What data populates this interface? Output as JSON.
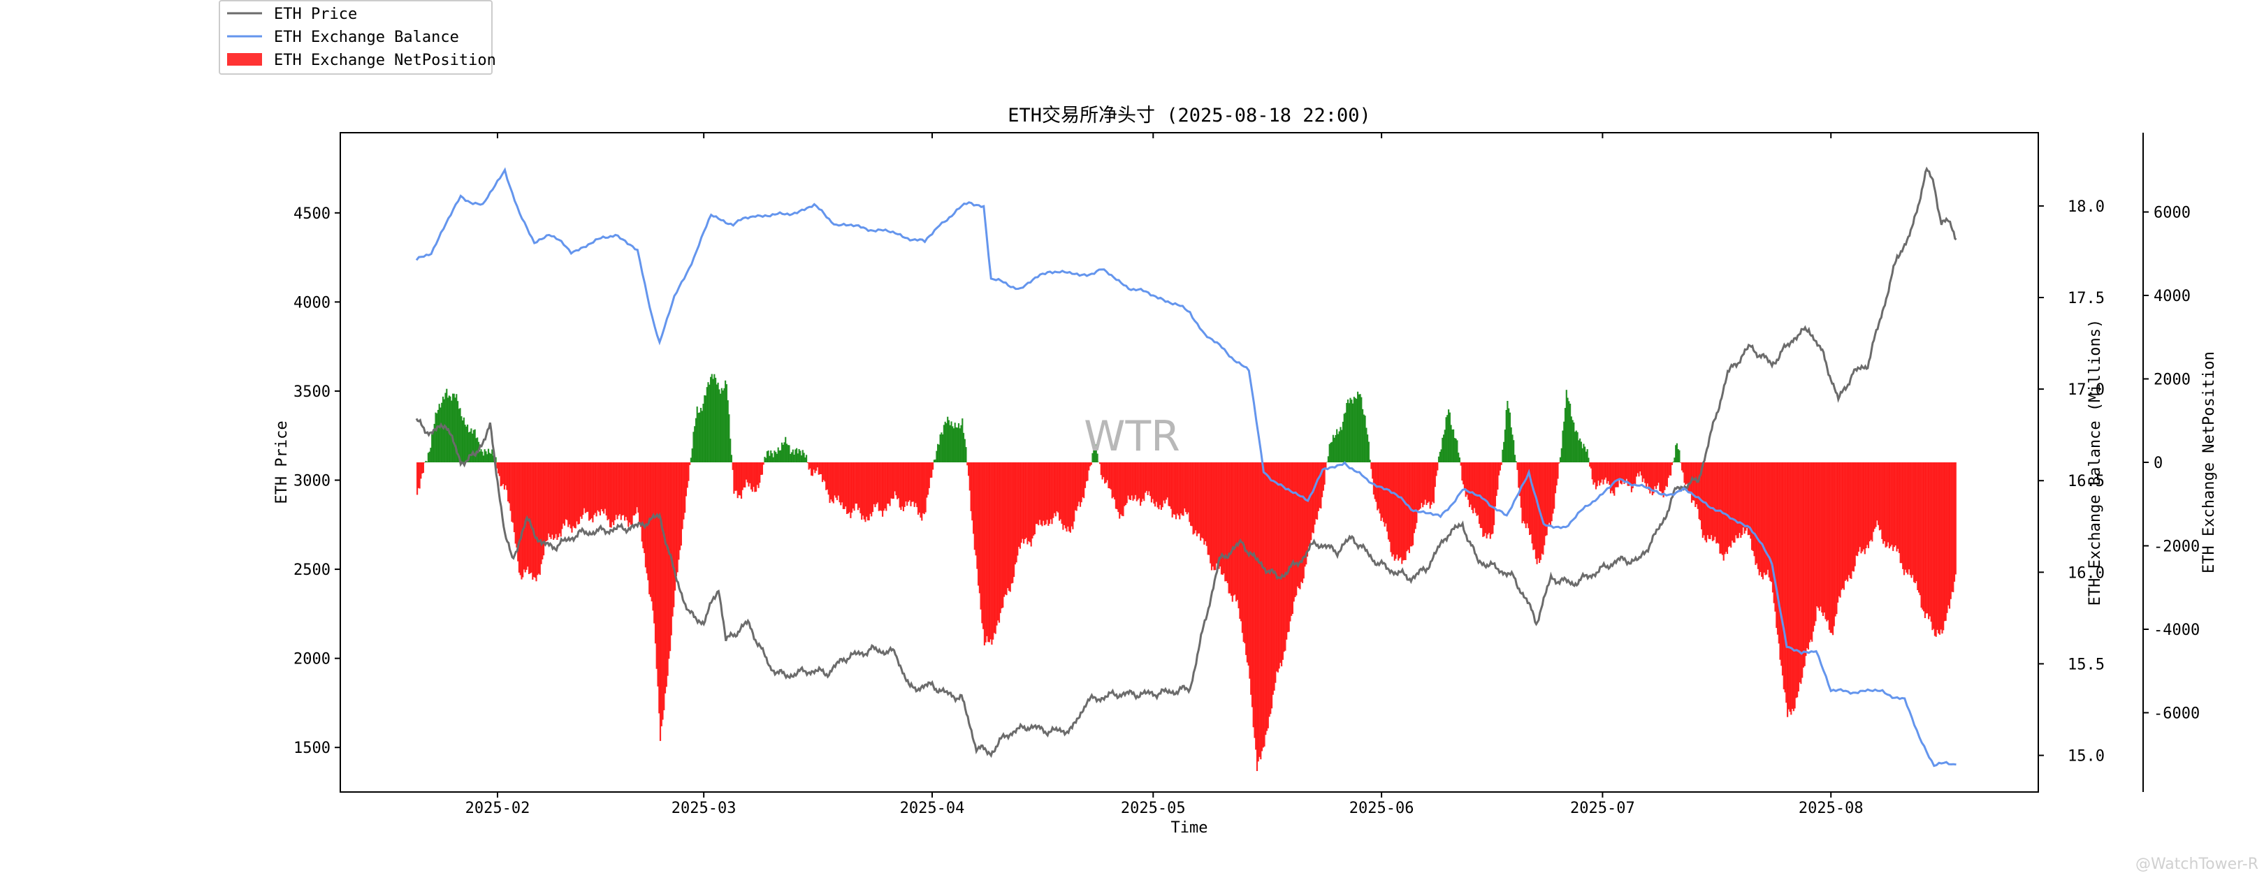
{
  "chart_data": {
    "type": "line",
    "title": "ETH交易所净头寸 (2025-08-18 22:00)",
    "xlabel": "Time",
    "x_ticks": [
      "2025-02",
      "2025-03",
      "2025-04",
      "2025-05",
      "2025-06",
      "2025-07",
      "2025-08"
    ],
    "x_range": [
      "2025-01-21",
      "2025-08-19"
    ],
    "watermark": "WTR",
    "credit": "@WatchTower-R",
    "legend_position": "top-left (outside plot)",
    "axes": {
      "price": {
        "label": "ETH Price",
        "side": "left",
        "ylim": [
          1250,
          4950
        ],
        "ticks": [
          "1500",
          "2000",
          "2500",
          "3000",
          "3500",
          "4000",
          "4500"
        ]
      },
      "balance": {
        "label": "ETH Exchange Balance (Millions)",
        "side": "right",
        "ylim": [
          14.8,
          18.4
        ],
        "ticks": [
          "15.0",
          "15.5",
          "16.0",
          "16.5",
          "17.0",
          "17.5",
          "18.0"
        ]
      },
      "netposition": {
        "label": "ETH Exchange NetPosition",
        "side": "right-outer",
        "ylim": [
          -7900,
          7900
        ],
        "ticks": [
          "-6000",
          "-4000",
          "-2000",
          "0",
          "2000",
          "4000",
          "6000"
        ]
      }
    },
    "series": [
      {
        "name": "ETH Price",
        "axis": "price",
        "color": "#6b6b6b",
        "points": [
          [
            "2025-01-21",
            3330
          ],
          [
            "2025-01-23",
            3260
          ],
          [
            "2025-01-25",
            3320
          ],
          [
            "2025-01-27",
            3100
          ],
          [
            "2025-01-29",
            3140
          ],
          [
            "2025-01-31",
            3300
          ],
          [
            "2025-02-02",
            2700
          ],
          [
            "2025-02-03",
            2550
          ],
          [
            "2025-02-05",
            2780
          ],
          [
            "2025-02-07",
            2640
          ],
          [
            "2025-02-09",
            2630
          ],
          [
            "2025-02-12",
            2700
          ],
          [
            "2025-02-16",
            2720
          ],
          [
            "2025-02-20",
            2740
          ],
          [
            "2025-02-23",
            2800
          ],
          [
            "2025-02-25",
            2480
          ],
          [
            "2025-02-27",
            2250
          ],
          [
            "2025-03-01",
            2200
          ],
          [
            "2025-03-03",
            2400
          ],
          [
            "2025-03-04",
            2100
          ],
          [
            "2025-03-07",
            2200
          ],
          [
            "2025-03-10",
            1950
          ],
          [
            "2025-03-12",
            1900
          ],
          [
            "2025-03-15",
            1930
          ],
          [
            "2025-03-18",
            1920
          ],
          [
            "2025-03-20",
            2000
          ],
          [
            "2025-03-24",
            2050
          ],
          [
            "2025-03-27",
            2030
          ],
          [
            "2025-03-29",
            1830
          ],
          [
            "2025-04-01",
            1850
          ],
          [
            "2025-04-03",
            1800
          ],
          [
            "2025-04-05",
            1780
          ],
          [
            "2025-04-07",
            1500
          ],
          [
            "2025-04-09",
            1470
          ],
          [
            "2025-04-11",
            1570
          ],
          [
            "2025-04-14",
            1620
          ],
          [
            "2025-04-17",
            1590
          ],
          [
            "2025-04-20",
            1600
          ],
          [
            "2025-04-22",
            1760
          ],
          [
            "2025-04-26",
            1800
          ],
          [
            "2025-04-30",
            1800
          ],
          [
            "2025-05-03",
            1810
          ],
          [
            "2025-05-06",
            1830
          ],
          [
            "2025-05-08",
            2200
          ],
          [
            "2025-05-10",
            2550
          ],
          [
            "2025-05-13",
            2650
          ],
          [
            "2025-05-15",
            2550
          ],
          [
            "2025-05-18",
            2450
          ],
          [
            "2025-05-21",
            2550
          ],
          [
            "2025-05-23",
            2650
          ],
          [
            "2025-05-26",
            2600
          ],
          [
            "2025-05-28",
            2680
          ],
          [
            "2025-05-31",
            2550
          ],
          [
            "2025-06-02",
            2500
          ],
          [
            "2025-06-05",
            2450
          ],
          [
            "2025-06-07",
            2500
          ],
          [
            "2025-06-10",
            2700
          ],
          [
            "2025-06-12",
            2750
          ],
          [
            "2025-06-14",
            2550
          ],
          [
            "2025-06-17",
            2500
          ],
          [
            "2025-06-19",
            2450
          ],
          [
            "2025-06-21",
            2300
          ],
          [
            "2025-06-22",
            2200
          ],
          [
            "2025-06-24",
            2450
          ],
          [
            "2025-06-27",
            2420
          ],
          [
            "2025-06-30",
            2480
          ],
          [
            "2025-07-03",
            2550
          ],
          [
            "2025-07-06",
            2550
          ],
          [
            "2025-07-09",
            2750
          ],
          [
            "2025-07-11",
            2950
          ],
          [
            "2025-07-14",
            3000
          ],
          [
            "2025-07-16",
            3300
          ],
          [
            "2025-07-18",
            3600
          ],
          [
            "2025-07-21",
            3750
          ],
          [
            "2025-07-24",
            3650
          ],
          [
            "2025-07-27",
            3800
          ],
          [
            "2025-07-29",
            3850
          ],
          [
            "2025-07-31",
            3700
          ],
          [
            "2025-08-02",
            3450
          ],
          [
            "2025-08-04",
            3600
          ],
          [
            "2025-08-06",
            3650
          ],
          [
            "2025-08-08",
            3950
          ],
          [
            "2025-08-10",
            4250
          ],
          [
            "2025-08-12",
            4400
          ],
          [
            "2025-08-14",
            4750
          ],
          [
            "2025-08-15",
            4650
          ],
          [
            "2025-08-16",
            4450
          ],
          [
            "2025-08-17",
            4450
          ],
          [
            "2025-08-18",
            4350
          ]
        ]
      },
      {
        "name": "ETH Exchange Balance",
        "axis": "balance",
        "color": "#6495ed",
        "points": [
          [
            "2025-01-21",
            17.7
          ],
          [
            "2025-01-23",
            17.75
          ],
          [
            "2025-01-25",
            17.9
          ],
          [
            "2025-01-27",
            18.05
          ],
          [
            "2025-01-30",
            18.0
          ],
          [
            "2025-02-02",
            18.2
          ],
          [
            "2025-02-04",
            17.95
          ],
          [
            "2025-02-06",
            17.8
          ],
          [
            "2025-02-08",
            17.85
          ],
          [
            "2025-02-11",
            17.75
          ],
          [
            "2025-02-14",
            17.8
          ],
          [
            "2025-02-17",
            17.85
          ],
          [
            "2025-02-20",
            17.75
          ],
          [
            "2025-02-22",
            17.4
          ],
          [
            "2025-02-23",
            17.25
          ],
          [
            "2025-02-25",
            17.5
          ],
          [
            "2025-02-28",
            17.75
          ],
          [
            "2025-03-02",
            17.95
          ],
          [
            "2025-03-05",
            17.9
          ],
          [
            "2025-03-08",
            17.95
          ],
          [
            "2025-03-12",
            17.95
          ],
          [
            "2025-03-16",
            18.0
          ],
          [
            "2025-03-19",
            17.9
          ],
          [
            "2025-03-23",
            17.88
          ],
          [
            "2025-03-27",
            17.85
          ],
          [
            "2025-03-31",
            17.8
          ],
          [
            "2025-04-02",
            17.9
          ],
          [
            "2025-04-06",
            18.02
          ],
          [
            "2025-04-08",
            18.0
          ],
          [
            "2025-04-09",
            17.6
          ],
          [
            "2025-04-13",
            17.55
          ],
          [
            "2025-04-17",
            17.65
          ],
          [
            "2025-04-21",
            17.62
          ],
          [
            "2025-04-24",
            17.65
          ],
          [
            "2025-04-28",
            17.55
          ],
          [
            "2025-05-02",
            17.5
          ],
          [
            "2025-05-06",
            17.42
          ],
          [
            "2025-05-08",
            17.3
          ],
          [
            "2025-05-11",
            17.2
          ],
          [
            "2025-05-14",
            17.1
          ],
          [
            "2025-05-16",
            16.55
          ],
          [
            "2025-05-19",
            16.45
          ],
          [
            "2025-05-22",
            16.4
          ],
          [
            "2025-05-24",
            16.55
          ],
          [
            "2025-05-27",
            16.6
          ],
          [
            "2025-05-30",
            16.5
          ],
          [
            "2025-06-02",
            16.45
          ],
          [
            "2025-06-05",
            16.35
          ],
          [
            "2025-06-09",
            16.3
          ],
          [
            "2025-06-12",
            16.45
          ],
          [
            "2025-06-15",
            16.4
          ],
          [
            "2025-06-18",
            16.3
          ],
          [
            "2025-06-21",
            16.55
          ],
          [
            "2025-06-23",
            16.25
          ],
          [
            "2025-06-26",
            16.25
          ],
          [
            "2025-06-30",
            16.4
          ],
          [
            "2025-07-03",
            16.5
          ],
          [
            "2025-07-06",
            16.48
          ],
          [
            "2025-07-09",
            16.42
          ],
          [
            "2025-07-12",
            16.45
          ],
          [
            "2025-07-15",
            16.38
          ],
          [
            "2025-07-18",
            16.3
          ],
          [
            "2025-07-21",
            16.25
          ],
          [
            "2025-07-24",
            16.05
          ],
          [
            "2025-07-26",
            15.6
          ],
          [
            "2025-07-28",
            15.55
          ],
          [
            "2025-07-30",
            15.58
          ],
          [
            "2025-08-01",
            15.35
          ],
          [
            "2025-08-04",
            15.35
          ],
          [
            "2025-08-08",
            15.35
          ],
          [
            "2025-08-11",
            15.3
          ],
          [
            "2025-08-13",
            15.1
          ],
          [
            "2025-08-15",
            14.95
          ],
          [
            "2025-08-18",
            14.95
          ]
        ]
      },
      {
        "name": "ETH Exchange NetPosition",
        "axis": "netposition",
        "type": "bar",
        "color_negative": "#ff0000",
        "color_positive": "#008000",
        "points": [
          [
            "2025-01-21",
            -900
          ],
          [
            "2025-01-23",
            700
          ],
          [
            "2025-01-25",
            1800
          ],
          [
            "2025-01-27",
            1200
          ],
          [
            "2025-01-29",
            500
          ],
          [
            "2025-01-31",
            200
          ],
          [
            "2025-02-02",
            -600
          ],
          [
            "2025-02-04",
            -2600
          ],
          [
            "2025-02-06",
            -2800
          ],
          [
            "2025-02-08",
            -1800
          ],
          [
            "2025-02-11",
            -1500
          ],
          [
            "2025-02-14",
            -1200
          ],
          [
            "2025-02-17",
            -1400
          ],
          [
            "2025-02-20",
            -1300
          ],
          [
            "2025-02-22",
            -3500
          ],
          [
            "2025-02-23",
            -6600
          ],
          [
            "2025-02-24",
            -5000
          ],
          [
            "2025-02-26",
            -1500
          ],
          [
            "2025-02-28",
            1200
          ],
          [
            "2025-03-02",
            2000
          ],
          [
            "2025-03-04",
            1800
          ],
          [
            "2025-03-05",
            -700
          ],
          [
            "2025-03-08",
            -600
          ],
          [
            "2025-03-10",
            300
          ],
          [
            "2025-03-13",
            400
          ],
          [
            "2025-03-16",
            -200
          ],
          [
            "2025-03-19",
            -1000
          ],
          [
            "2025-03-23",
            -1300
          ],
          [
            "2025-03-27",
            -900
          ],
          [
            "2025-03-31",
            -1200
          ],
          [
            "2025-04-02",
            800
          ],
          [
            "2025-04-05",
            1000
          ],
          [
            "2025-04-07",
            -2500
          ],
          [
            "2025-04-08",
            -4500
          ],
          [
            "2025-04-10",
            -3800
          ],
          [
            "2025-04-13",
            -2000
          ],
          [
            "2025-04-17",
            -1300
          ],
          [
            "2025-04-20",
            -1600
          ],
          [
            "2025-04-23",
            300
          ],
          [
            "2025-04-26",
            -1200
          ],
          [
            "2025-04-29",
            -800
          ],
          [
            "2025-05-02",
            -1000
          ],
          [
            "2025-05-06",
            -1400
          ],
          [
            "2025-05-09",
            -2400
          ],
          [
            "2025-05-12",
            -3200
          ],
          [
            "2025-05-14",
            -5000
          ],
          [
            "2025-05-15",
            -7500
          ],
          [
            "2025-05-17",
            -5800
          ],
          [
            "2025-05-19",
            -4200
          ],
          [
            "2025-05-21",
            -2800
          ],
          [
            "2025-05-23",
            -1500
          ],
          [
            "2025-05-25",
            400
          ],
          [
            "2025-05-27",
            1200
          ],
          [
            "2025-05-29",
            1800
          ],
          [
            "2025-05-31",
            -800
          ],
          [
            "2025-06-02",
            -2000
          ],
          [
            "2025-06-04",
            -2500
          ],
          [
            "2025-06-06",
            -1200
          ],
          [
            "2025-06-08",
            -800
          ],
          [
            "2025-06-10",
            1400
          ],
          [
            "2025-06-12",
            -500
          ],
          [
            "2025-06-14",
            -1500
          ],
          [
            "2025-06-16",
            -1800
          ],
          [
            "2025-06-18",
            1500
          ],
          [
            "2025-06-20",
            -1200
          ],
          [
            "2025-06-22",
            -2400
          ],
          [
            "2025-06-24",
            -1500
          ],
          [
            "2025-06-26",
            1500
          ],
          [
            "2025-06-28",
            500
          ],
          [
            "2025-06-30",
            -500
          ],
          [
            "2025-07-03",
            -600
          ],
          [
            "2025-07-06",
            -400
          ],
          [
            "2025-07-09",
            -800
          ],
          [
            "2025-07-11",
            300
          ],
          [
            "2025-07-13",
            -900
          ],
          [
            "2025-07-15",
            -1800
          ],
          [
            "2025-07-18",
            -2200
          ],
          [
            "2025-07-20",
            -1500
          ],
          [
            "2025-07-22",
            -2500
          ],
          [
            "2025-07-24",
            -3000
          ],
          [
            "2025-07-26",
            -6200
          ],
          [
            "2025-07-28",
            -5200
          ],
          [
            "2025-07-30",
            -3500
          ],
          [
            "2025-08-01",
            -4000
          ],
          [
            "2025-08-03",
            -2800
          ],
          [
            "2025-08-05",
            -2200
          ],
          [
            "2025-08-07",
            -1600
          ],
          [
            "2025-08-09",
            -2000
          ],
          [
            "2025-08-11",
            -2500
          ],
          [
            "2025-08-13",
            -3200
          ],
          [
            "2025-08-15",
            -4200
          ],
          [
            "2025-08-17",
            -3600
          ],
          [
            "2025-08-18",
            -2500
          ]
        ]
      }
    ]
  }
}
